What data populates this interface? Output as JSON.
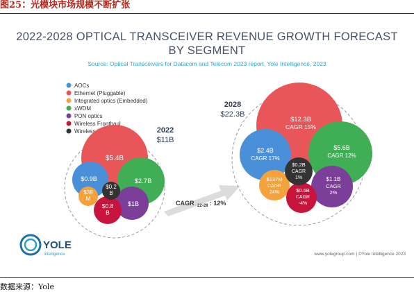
{
  "figure_title": "图25：光模块市场规模不断扩张",
  "source_text": "数据来源：Yole",
  "chart_data": {
    "type": "bubble",
    "title_line1": "2022-2028 OPTICAL TRANSCEIVER REVENUE GROWTH FORECAST",
    "title_line2": "BY SEGMENT",
    "subtitle": "Source: Optical Transceivers for Datacom and Telecom 2023 report, Yole Intelligence, 2023",
    "legend": [
      {
        "name": "AOCs",
        "color": "#4a90d9"
      },
      {
        "name": "Ethernet (Pluggable)",
        "color": "#e8565a"
      },
      {
        "name": "Integrated optics (Embedded)",
        "color": "#f4a23c"
      },
      {
        "name": "xWDM",
        "color": "#3fae55"
      },
      {
        "name": "PON optics",
        "color": "#7b3f99"
      },
      {
        "name": "Wireless Fronthaul",
        "color": "#c8143c"
      },
      {
        "name": "Wireless Mid/Backhaul",
        "color": "#333333"
      }
    ],
    "groups": [
      {
        "year": "2022",
        "total": "$11B",
        "bubbles": [
          {
            "segment": "Ethernet (Pluggable)",
            "label": "$5.4B"
          },
          {
            "segment": "AOCs",
            "label": "$0.9B"
          },
          {
            "segment": "xWDM",
            "label": "$2.7B"
          },
          {
            "segment": "Wireless Mid/Backhaul",
            "label": "$0.2 B"
          },
          {
            "segment": "Integrated optics (Embedded)",
            "label": "$38 M"
          },
          {
            "segment": "Wireless Fronthaul",
            "label": "$0.8 B"
          },
          {
            "segment": "PON optics",
            "label": "$1B"
          }
        ]
      },
      {
        "year": "2028",
        "total": "$22.3B",
        "bubbles": [
          {
            "segment": "Ethernet (Pluggable)",
            "label": "$12.3B",
            "cagr": "CAGR 15%"
          },
          {
            "segment": "AOCs",
            "label": "$2.4B",
            "cagr": "CAGR 17%"
          },
          {
            "segment": "xWDM",
            "label": "$5.6B",
            "cagr": "CAGR 12%"
          },
          {
            "segment": "Wireless Mid/Backhaul",
            "label": "$0.2B",
            "cagr": "CAGR 1%"
          },
          {
            "segment": "Integrated optics (Embedded)",
            "label": "$137M",
            "cagr": "CAGR 24%"
          },
          {
            "segment": "Wireless Fronthaul",
            "label": "$0.6B",
            "cagr": "CAGR -4%"
          },
          {
            "segment": "PON optics",
            "label": "$1.1B",
            "cagr": "CAGR 2%"
          }
        ]
      }
    ],
    "overall_cagr": {
      "prefix": "CAGR",
      "subscript": "22-28",
      "value": ": 12%"
    }
  },
  "logo": {
    "name": "YOLE",
    "sub": "Intelligence"
  },
  "footer": "www.yolegroup.com | ©Yole Intelligence 2023"
}
